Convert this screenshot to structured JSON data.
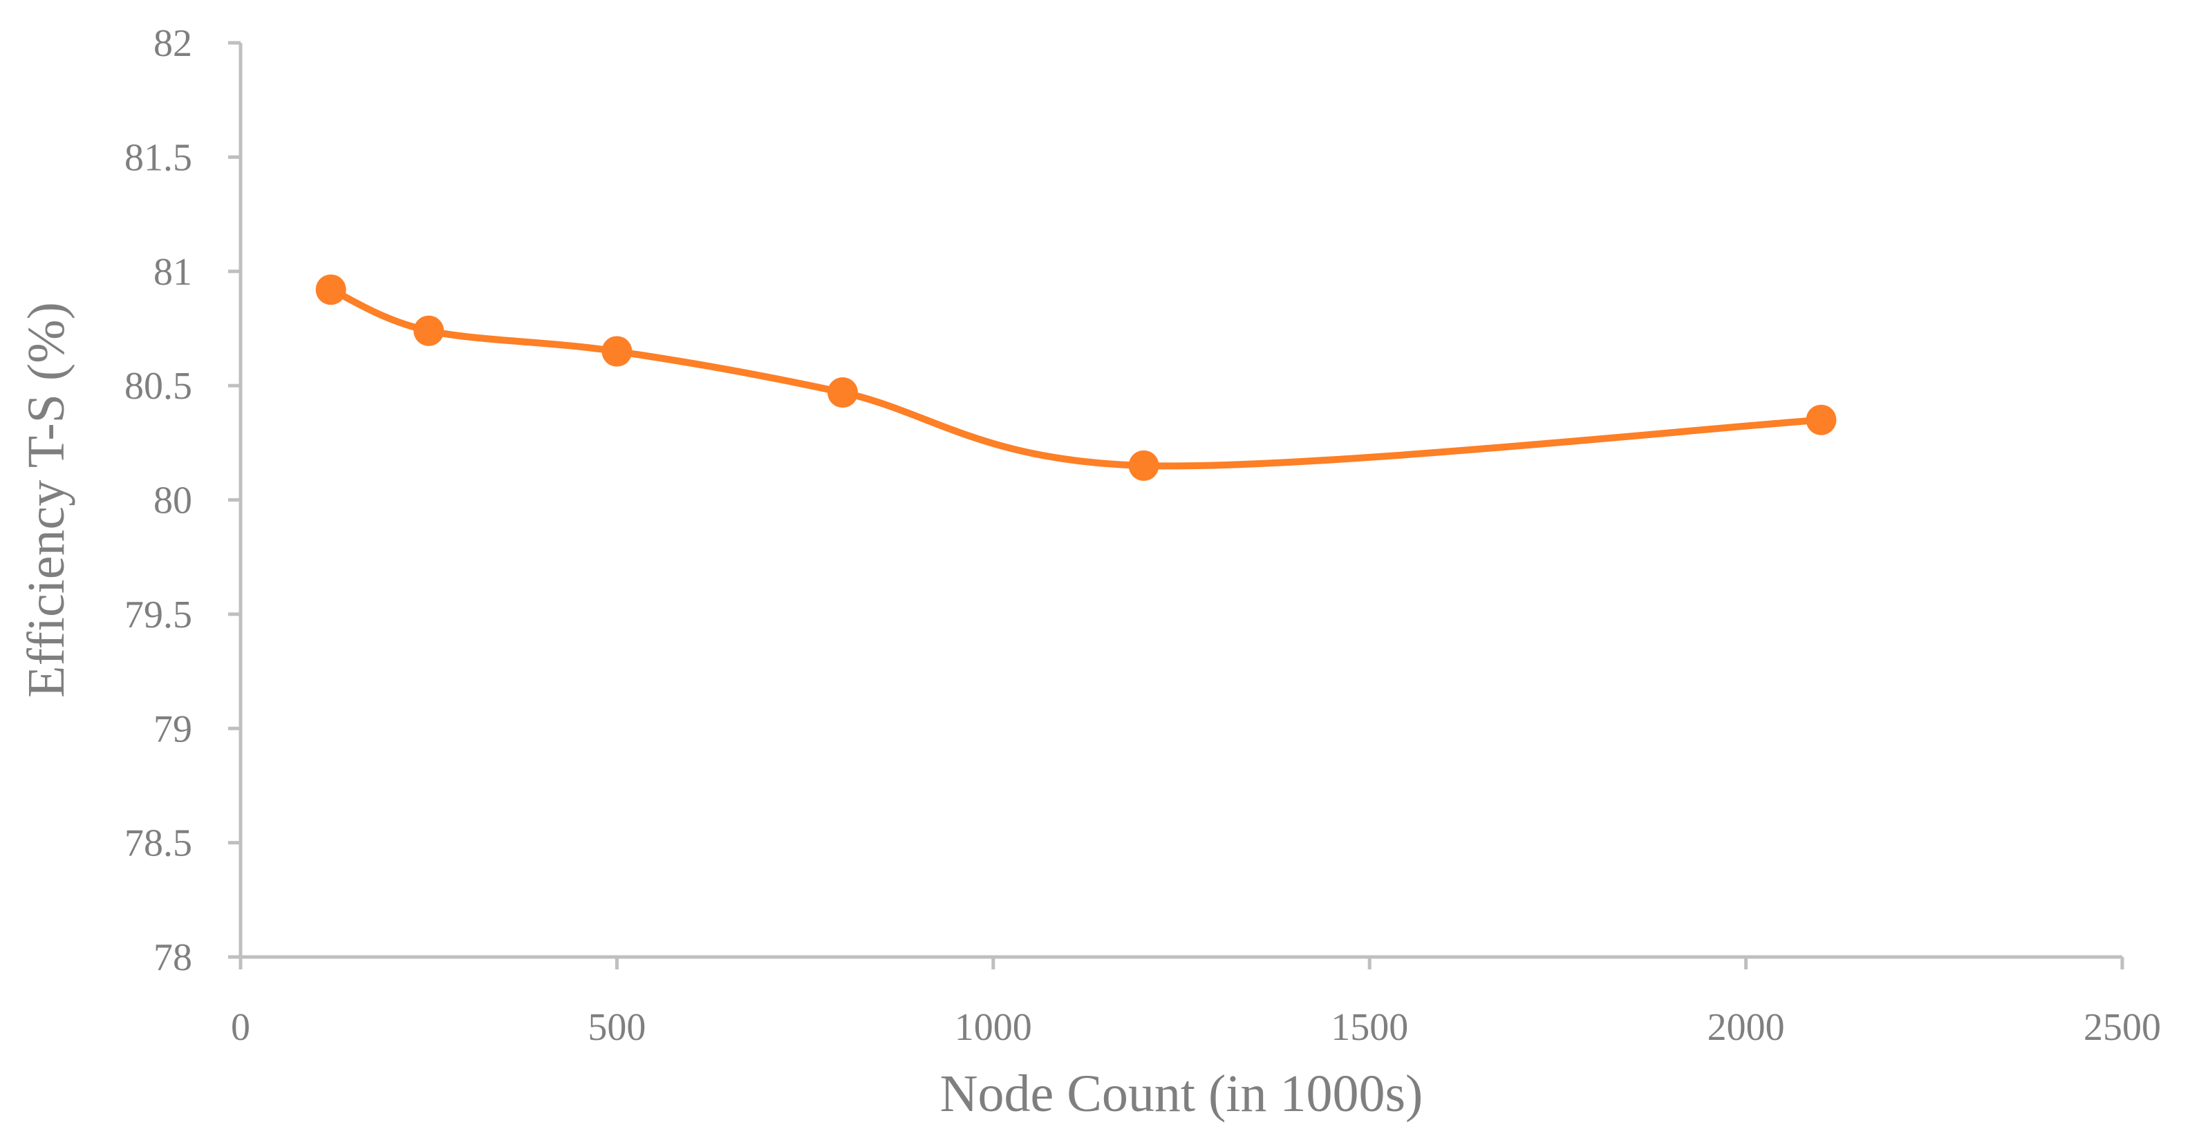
{
  "chart_data": {
    "type": "line",
    "smooth": true,
    "xlabel": "Node Count (in 1000s)",
    "ylabel": "Efficiency T-S (%)",
    "xlim": [
      0,
      2500
    ],
    "ylim": [
      78,
      82
    ],
    "xticks": [
      0,
      500,
      1000,
      1500,
      2000,
      2500
    ],
    "yticks": [
      78,
      78.5,
      79,
      79.5,
      80,
      80.5,
      81,
      81.5,
      82
    ],
    "grid": false,
    "legend": "none",
    "series": [
      {
        "color": "#fd7f26",
        "markers": true,
        "x": [
          120,
          250,
          500,
          800,
          1200,
          2100
        ],
        "y": [
          80.92,
          80.74,
          80.65,
          80.47,
          80.15,
          80.35
        ]
      }
    ]
  }
}
